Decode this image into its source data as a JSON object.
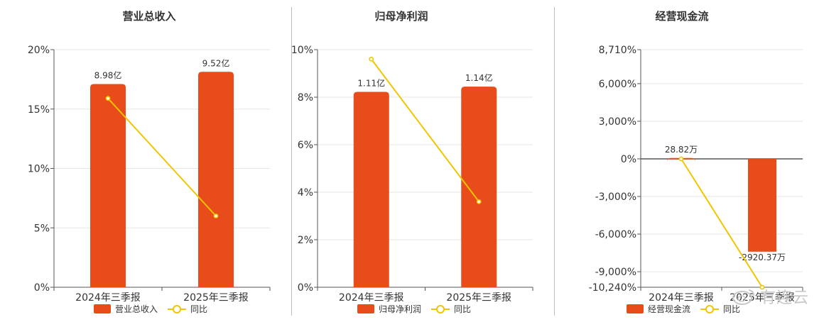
{
  "colors": {
    "bar": "#e84c1b",
    "line": "#f2c500",
    "grid": "#e6e6e6",
    "axis": "#555555",
    "text": "#333333"
  },
  "chart_data": [
    {
      "type": "bar",
      "title": "营业总收入",
      "categories": [
        "2024年三季报",
        "2025年三季报"
      ],
      "bar_series": {
        "name": "营业总收入",
        "values": [
          8.98,
          9.52
        ],
        "labels": [
          "8.98亿",
          "9.52亿"
        ]
      },
      "line_series": {
        "name": "同比",
        "values": [
          15.9,
          6.0
        ]
      },
      "y_ticks": [
        0,
        5,
        10,
        15,
        20
      ],
      "y_tick_labels": [
        "0%",
        "5%",
        "10%",
        "15%",
        "20%"
      ],
      "ylim": [
        0,
        20
      ],
      "bar_ylim": [
        0,
        10.5
      ]
    },
    {
      "type": "bar",
      "title": "归母净利润",
      "categories": [
        "2024年三季报",
        "2025年三季报"
      ],
      "bar_series": {
        "name": "归母净利润",
        "values": [
          1.11,
          1.14
        ],
        "labels": [
          "1.11亿",
          "1.14亿"
        ]
      },
      "line_series": {
        "name": "同比",
        "values": [
          9.6,
          3.6
        ]
      },
      "y_ticks": [
        0,
        2,
        4,
        6,
        8,
        10
      ],
      "y_tick_labels": [
        "0%",
        "2%",
        "4%",
        "6%",
        "8%",
        "10%"
      ],
      "ylim": [
        0,
        10
      ],
      "bar_ylim": [
        0,
        1.35
      ]
    },
    {
      "type": "bar",
      "title": "经营现金流",
      "categories": [
        "2024年三季报",
        "2025年三季报"
      ],
      "bar_series": {
        "name": "经营现金流",
        "values": [
          28.82,
          -2920.37
        ],
        "labels": [
          "28.82万",
          "-2920.37万"
        ]
      },
      "line_series": {
        "name": "同比",
        "values": [
          0,
          -10240
        ]
      },
      "y_ticks": [
        -10240,
        -9000,
        -6000,
        -3000,
        0,
        3000,
        6000,
        8710
      ],
      "y_tick_labels": [
        "-10,240%",
        "-9,000%",
        "-6,000%",
        "-3,000%",
        "0%",
        "3,000%",
        "6,000%",
        "8,710%"
      ],
      "ylim": [
        -10240,
        8710
      ],
      "bar_ylim": [
        -4040,
        3440
      ]
    }
  ],
  "watermark": {
    "text": "有连云"
  }
}
